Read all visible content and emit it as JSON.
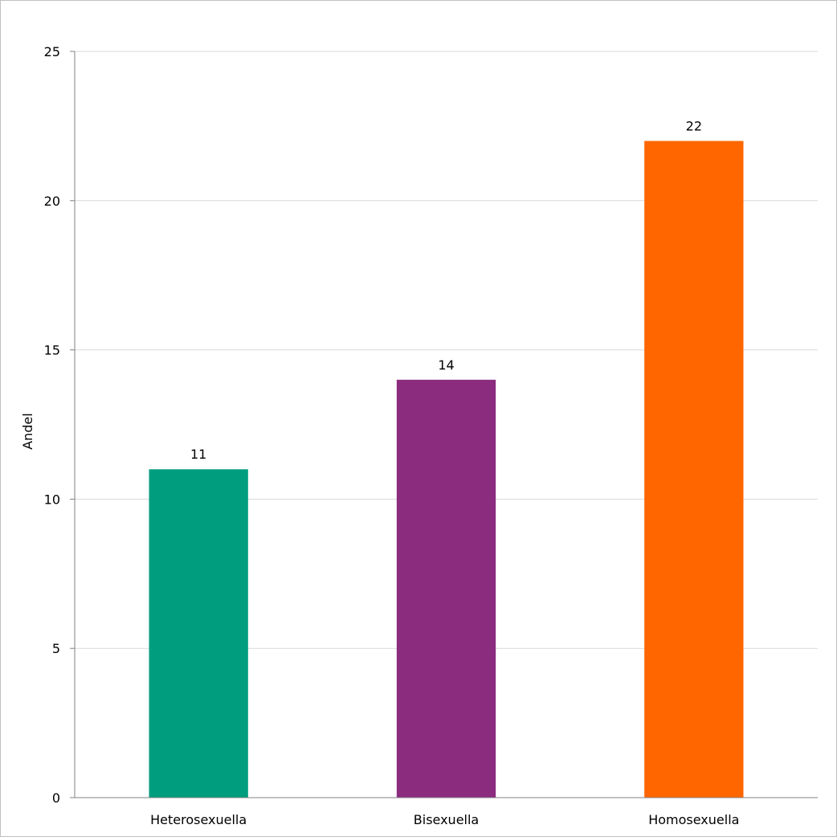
{
  "chart_data": {
    "type": "bar",
    "title": "",
    "xlabel": "",
    "ylabel": "Andel",
    "ylim": [
      0,
      25
    ],
    "yticks": [
      0,
      5,
      10,
      15,
      20,
      25
    ],
    "grid": true,
    "legend": "none",
    "categories": [
      "Heterosexuella",
      "Bisexuella",
      "Homosexuella"
    ],
    "values": [
      11,
      14,
      22
    ],
    "data_labels": [
      "11",
      "14",
      "22"
    ],
    "colors": [
      "#009e7e",
      "#8b2c7e",
      "#ff6600"
    ]
  }
}
